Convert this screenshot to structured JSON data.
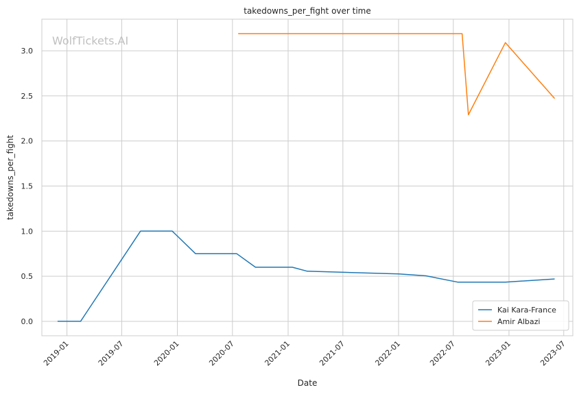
{
  "chart_data": {
    "type": "line",
    "title": "takedowns_per_fight over time",
    "xlabel": "Date",
    "ylabel": "takedowns_per_fight",
    "watermark": "WolfTickets.AI",
    "ylim": [
      -0.16,
      3.35
    ],
    "xlim": [
      "2018-10-10",
      "2023-07-31"
    ],
    "yticks": [
      0.0,
      0.5,
      1.0,
      1.5,
      2.0,
      2.5,
      3.0
    ],
    "ytick_labels": [
      "0.0",
      "0.5",
      "1.0",
      "1.5",
      "2.0",
      "2.5",
      "3.0"
    ],
    "xticks": [
      "2019-01-01",
      "2019-07-01",
      "2020-01-01",
      "2020-07-01",
      "2021-01-01",
      "2021-07-01",
      "2022-01-01",
      "2022-07-01",
      "2023-01-01",
      "2023-07-01"
    ],
    "xtick_labels": [
      "2019-01",
      "2019-07",
      "2020-01",
      "2020-07",
      "2021-01",
      "2021-07",
      "2022-01",
      "2022-07",
      "2023-01",
      "2023-07"
    ],
    "grid": true,
    "legend_position": "lower-right",
    "series": [
      {
        "name": "Kai Kara-France",
        "color": "#1f77b4",
        "points": [
          {
            "x": "2018-12-01",
            "y": 0.0
          },
          {
            "x": "2019-02-15",
            "y": 0.0
          },
          {
            "x": "2019-09-01",
            "y": 1.0
          },
          {
            "x": "2019-12-15",
            "y": 1.0
          },
          {
            "x": "2020-03-01",
            "y": 0.75
          },
          {
            "x": "2020-07-15",
            "y": 0.75
          },
          {
            "x": "2020-09-15",
            "y": 0.6
          },
          {
            "x": "2021-01-15",
            "y": 0.6
          },
          {
            "x": "2021-03-05",
            "y": 0.556
          },
          {
            "x": "2022-01-01",
            "y": 0.525
          },
          {
            "x": "2022-04-01",
            "y": 0.505
          },
          {
            "x": "2022-07-15",
            "y": 0.435
          },
          {
            "x": "2022-12-20",
            "y": 0.435
          },
          {
            "x": "2023-06-01",
            "y": 0.47
          }
        ]
      },
      {
        "name": "Amir Albazi",
        "color": "#ff7f0e",
        "points": [
          {
            "x": "2020-07-20",
            "y": 3.19
          },
          {
            "x": "2022-07-30",
            "y": 3.19
          },
          {
            "x": "2022-08-20",
            "y": 2.29
          },
          {
            "x": "2022-12-20",
            "y": 3.09
          },
          {
            "x": "2023-06-01",
            "y": 2.47
          }
        ]
      }
    ]
  }
}
